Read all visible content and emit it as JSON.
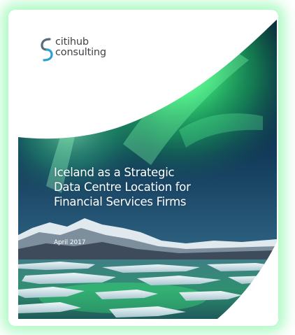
{
  "brand": {
    "name_line1": "citihub",
    "name_line2": "consulting",
    "logo_icon": "citihub-c-mark",
    "logo_colors": [
      "#2aa0d6",
      "#5a6a77"
    ]
  },
  "cover": {
    "title_line1": "Iceland as a Strategic",
    "title_line2": "Data Centre Location for",
    "title_line3": "Financial Services Firms",
    "date": "April 2017"
  },
  "colors": {
    "aurora_green": "#3cf07a",
    "sky_dark": "#0b1c3a",
    "glow": "#6ef596"
  }
}
